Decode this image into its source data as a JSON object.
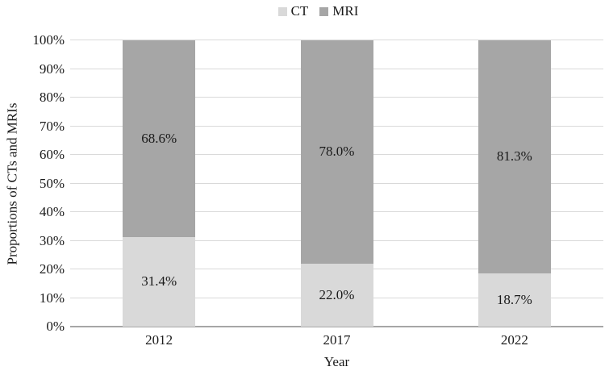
{
  "figure": {
    "background": "#ffffff"
  },
  "legend": {
    "position": "top-center",
    "items": [
      {
        "label": "CT",
        "color": "#d9d9d9"
      },
      {
        "label": "MRI",
        "color": "#a6a6a6"
      }
    ]
  },
  "axes": {
    "ylabel": "Proportions of CTs and MRIs",
    "xlabel": "Year",
    "yticks": [
      "0%",
      "10%",
      "20%",
      "30%",
      "40%",
      "50%",
      "60%",
      "70%",
      "80%",
      "90%",
      "100%"
    ],
    "gridline_color": "#d9d9d9",
    "axis_line_color": "#a6a6a6",
    "text_color": "#1a1a1a"
  },
  "chart_data": {
    "type": "bar",
    "stacked": true,
    "percent_stacked": true,
    "title": "",
    "xlabel": "Year",
    "ylabel": "Proportions of CTs and MRIs",
    "ylim": [
      0,
      100
    ],
    "grid": true,
    "legend_position": "top",
    "categories": [
      "2012",
      "2017",
      "2022"
    ],
    "series": [
      {
        "name": "CT",
        "color": "#d9d9d9",
        "values": [
          31.4,
          22.0,
          18.7
        ],
        "labels": [
          "31.4%",
          "22.0%",
          "18.7%"
        ]
      },
      {
        "name": "MRI",
        "color": "#a6a6a6",
        "values": [
          68.6,
          78.0,
          81.3
        ],
        "labels": [
          "68.6%",
          "78.0%",
          "81.3%"
        ]
      }
    ]
  }
}
